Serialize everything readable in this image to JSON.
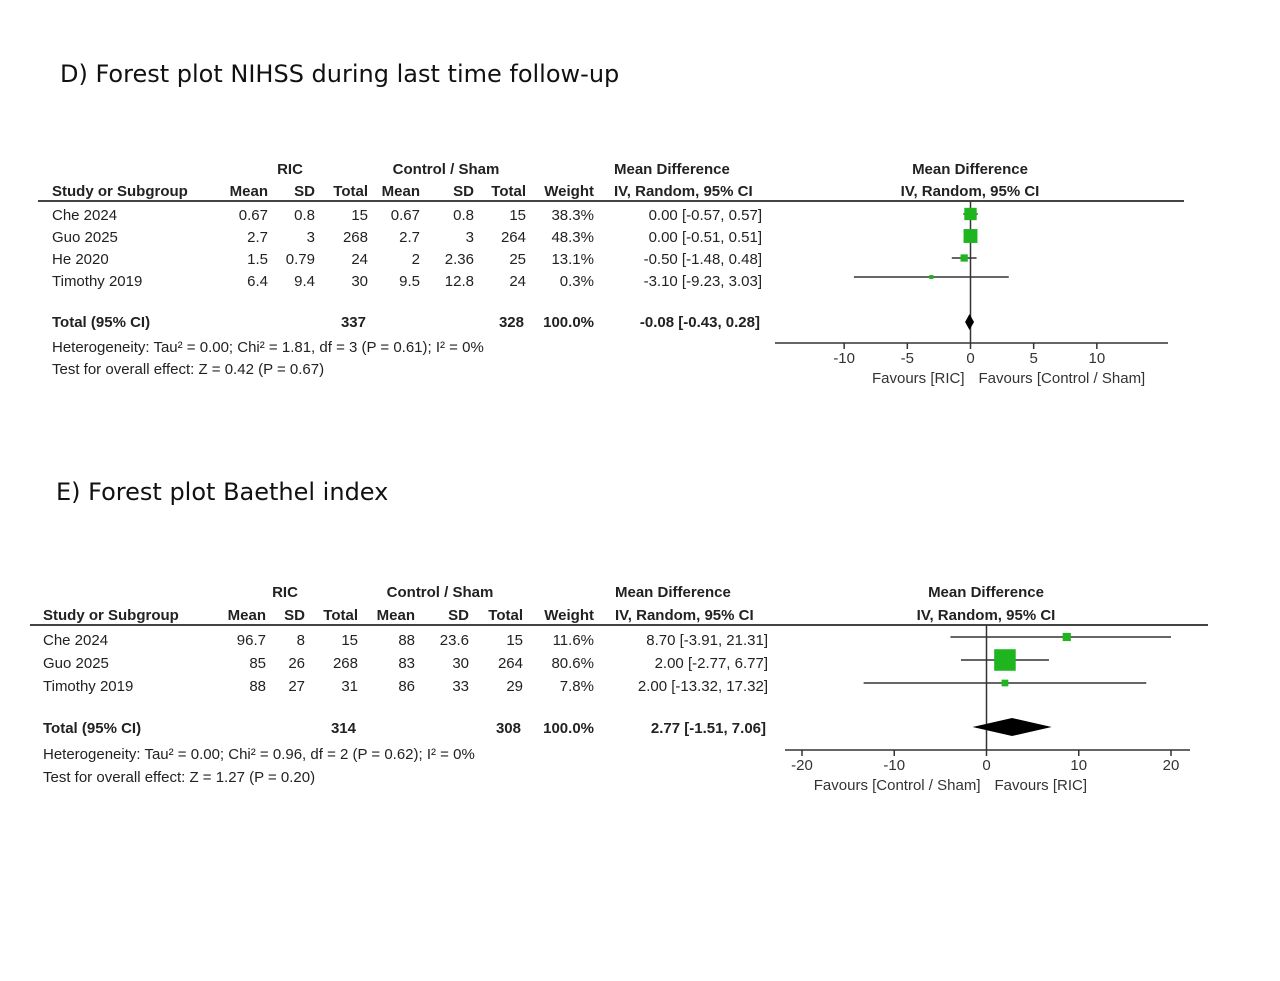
{
  "chart_data": [
    {
      "type": "forest",
      "title": "D) Forest plot NIHSS during last time follow-up",
      "group1_label": "RIC",
      "group2_label": "Control / Sham",
      "headers": {
        "study": "Study or Subgroup",
        "mean": "Mean",
        "sd": "SD",
        "total": "Total",
        "weight": "Weight",
        "md_title": "Mean Difference",
        "md_method": "IV, Random, 95% CI"
      },
      "studies": [
        {
          "name": "Che 2024",
          "m1": "0.67",
          "sd1": "0.8",
          "n1": "15",
          "m2": "0.67",
          "sd2": "0.8",
          "n2": "15",
          "weight_text": "38.3%",
          "ci_text": "0.00 [-0.57, 0.57]",
          "md": 0.0,
          "lo": -0.57,
          "hi": 0.57,
          "weight": 38.3
        },
        {
          "name": "Guo 2025",
          "m1": "2.7",
          "sd1": "3",
          "n1": "268",
          "m2": "2.7",
          "sd2": "3",
          "n2": "264",
          "weight_text": "48.3%",
          "ci_text": "0.00 [-0.51, 0.51]",
          "md": 0.0,
          "lo": -0.51,
          "hi": 0.51,
          "weight": 48.3
        },
        {
          "name": "He 2020",
          "m1": "1.5",
          "sd1": "0.79",
          "n1": "24",
          "m2": "2",
          "sd2": "2.36",
          "n2": "25",
          "weight_text": "13.1%",
          "ci_text": "-0.50 [-1.48, 0.48]",
          "md": -0.5,
          "lo": -1.48,
          "hi": 0.48,
          "weight": 13.1
        },
        {
          "name": "Timothy 2019",
          "m1": "6.4",
          "sd1": "9.4",
          "n1": "30",
          "m2": "9.5",
          "sd2": "12.8",
          "n2": "24",
          "weight_text": "0.3%",
          "ci_text": "-3.10 [-9.23, 3.03]",
          "md": -3.1,
          "lo": -9.23,
          "hi": 3.03,
          "weight": 0.3
        }
      ],
      "total": {
        "label": "Total (95% CI)",
        "n1": "337",
        "n2": "328",
        "weight_text": "100.0%",
        "ci_text": "-0.08 [-0.43, 0.28]",
        "md": -0.08,
        "lo": -0.43,
        "hi": 0.28
      },
      "heterogeneity": "Heterogeneity: Tau² = 0.00; Chi² = 1.81, df = 3 (P = 0.61); I² = 0%",
      "overall_effect": "Test for overall effect: Z = 0.42 (P = 0.67)",
      "xlim": [
        -15,
        15
      ],
      "ticks": [
        -10,
        -5,
        0,
        5,
        10
      ],
      "favours_left": "Favours [RIC]",
      "favours_right": "Favours [Control / Sham]"
    },
    {
      "type": "forest",
      "title": "E) Forest plot Baethel index",
      "group1_label": "RIC",
      "group2_label": "Control / Sham",
      "headers": {
        "study": "Study or Subgroup",
        "mean": "Mean",
        "sd": "SD",
        "total": "Total",
        "weight": "Weight",
        "md_title": "Mean Difference",
        "md_method": "IV, Random, 95% CI"
      },
      "studies": [
        {
          "name": "Che 2024",
          "m1": "96.7",
          "sd1": "8",
          "n1": "15",
          "m2": "88",
          "sd2": "23.6",
          "n2": "15",
          "weight_text": "11.6%",
          "ci_text": "8.70 [-3.91, 21.31]",
          "md": 8.7,
          "lo": -3.91,
          "hi": 21.31,
          "weight": 11.6
        },
        {
          "name": "Guo 2025",
          "m1": "85",
          "sd1": "26",
          "n1": "268",
          "m2": "83",
          "sd2": "30",
          "n2": "264",
          "weight_text": "80.6%",
          "ci_text": "2.00 [-2.77, 6.77]",
          "md": 2.0,
          "lo": -2.77,
          "hi": 6.77,
          "weight": 80.6
        },
        {
          "name": "Timothy 2019",
          "m1": "88",
          "sd1": "27",
          "n1": "31",
          "m2": "86",
          "sd2": "33",
          "n2": "29",
          "weight_text": "7.8%",
          "ci_text": "2.00 [-13.32, 17.32]",
          "md": 2.0,
          "lo": -13.32,
          "hi": 17.32,
          "weight": 7.8
        }
      ],
      "total": {
        "label": "Total (95% CI)",
        "n1": "314",
        "n2": "308",
        "weight_text": "100.0%",
        "ci_text": "2.77 [-1.51, 7.06]",
        "md": 2.77,
        "lo": -1.51,
        "hi": 7.06
      },
      "heterogeneity": "Heterogeneity: Tau² = 0.00; Chi² = 0.96, df = 2 (P = 0.62); I² = 0%",
      "overall_effect": "Test for overall effect: Z = 1.27 (P = 0.20)",
      "xlim": [
        -20,
        20
      ],
      "ticks": [
        -20,
        -10,
        0,
        10,
        20
      ],
      "favours_left": "Favours [Control / Sham]",
      "favours_right": "Favours [RIC]"
    }
  ],
  "colors": {
    "marker": "#1fb51f",
    "diamond": "#000000",
    "line": "#333333"
  }
}
